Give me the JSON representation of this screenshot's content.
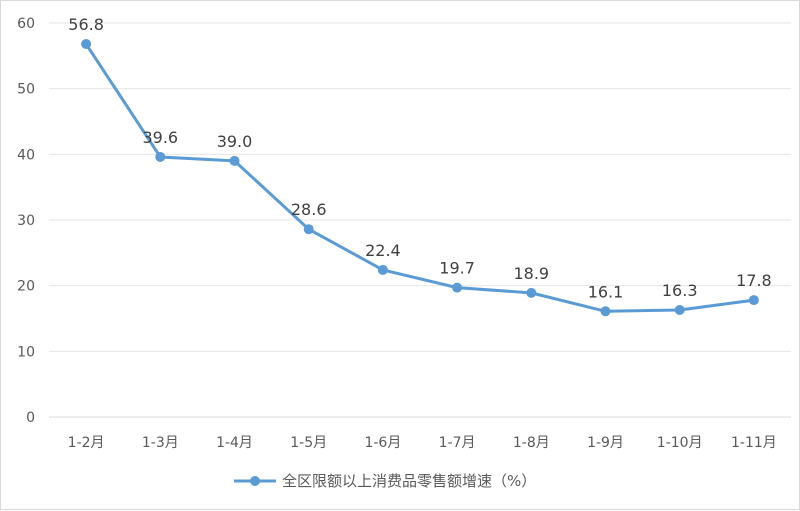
{
  "chart_data": {
    "type": "line",
    "categories": [
      "1-2月",
      "1-3月",
      "1-4月",
      "1-5月",
      "1-6月",
      "1-7月",
      "1-8月",
      "1-9月",
      "1-10月",
      "1-11月"
    ],
    "series": [
      {
        "name": "全区限额以上消费品零售额增速（%）",
        "values": [
          56.8,
          39.6,
          39.0,
          28.6,
          22.4,
          19.7,
          18.9,
          16.1,
          16.3,
          17.8
        ],
        "color": "#5b9bd5"
      }
    ],
    "yticks": [
      "0",
      "10",
      "20",
      "30",
      "40",
      "50",
      "60"
    ],
    "ylim": [
      0,
      60
    ],
    "grid": true,
    "legend_position": "bottom"
  }
}
